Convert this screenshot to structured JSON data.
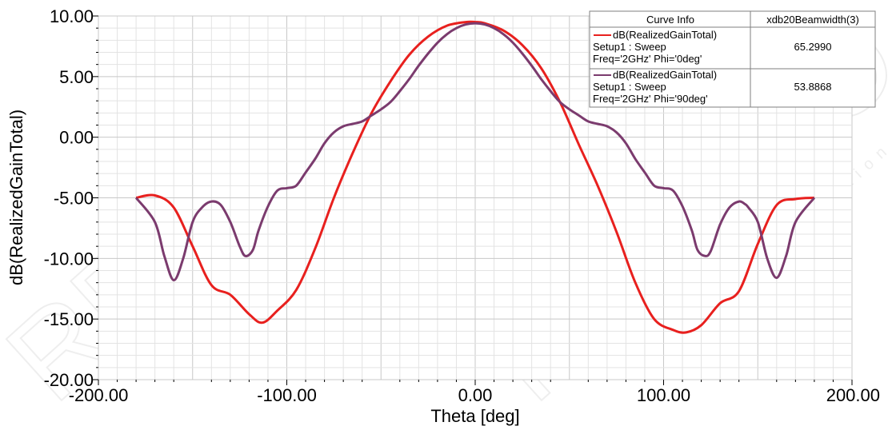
{
  "chart_data": {
    "type": "line",
    "xlabel": "Theta [deg]",
    "ylabel": "dB(RealizedGainTotal)",
    "xlim": [
      -200,
      200
    ],
    "ylim": [
      -20,
      10
    ],
    "x_ticks": [
      "-200.00",
      "-100.00",
      "0.00",
      "100.00",
      "200.00"
    ],
    "y_ticks": [
      "10.00",
      "5.00",
      "0.00",
      "-5.00",
      "-10.00",
      "-15.00",
      "-20.00"
    ],
    "grid": true,
    "legend": {
      "placement": "top-right",
      "header_left": "Curve Info",
      "header_right": "xdb20Beamwidth(3)",
      "rows": [
        {
          "line1": "dB(RealizedGainTotal)",
          "line2": "Setup1 : Sweep",
          "line3": "Freq='2GHz' Phi='0deg'",
          "value": "65.2990"
        },
        {
          "line1": "dB(RealizedGainTotal)",
          "line2": "Setup1 : Sweep",
          "line3": "Freq='2GHz' Phi='90deg'",
          "value": "53.8868"
        }
      ]
    },
    "series": [
      {
        "name": "dB(RealizedGainTotal) Setup1 : Sweep Freq='2GHz' Phi='0deg'",
        "color": "#e8201e",
        "x": [
          -180,
          -170,
          -160,
          -150,
          -140,
          -130,
          -120,
          -113,
          -105,
          -95,
          -85,
          -75,
          -65,
          -55,
          -45,
          -35,
          -25,
          -15,
          -5,
          0,
          5,
          15,
          25,
          35,
          45,
          55,
          65,
          75,
          85,
          95,
          105,
          112,
          120,
          130,
          140,
          150,
          160,
          170,
          180
        ],
        "y": [
          -5.0,
          -4.8,
          -5.8,
          -9.0,
          -12.2,
          -13.0,
          -14.6,
          -15.3,
          -14.3,
          -12.6,
          -9.2,
          -5.0,
          -1.3,
          2.0,
          4.6,
          6.8,
          8.3,
          9.2,
          9.5,
          9.5,
          9.4,
          8.8,
          7.6,
          5.7,
          2.9,
          -0.6,
          -4.0,
          -7.8,
          -12.0,
          -15.0,
          -15.9,
          -16.1,
          -15.5,
          -13.7,
          -12.7,
          -8.8,
          -5.6,
          -5.1,
          -5.0
        ]
      },
      {
        "name": "dB(RealizedGainTotal) Setup1 : Sweep Freq='2GHz' Phi='90deg'",
        "color": "#7b3b6e",
        "x": [
          -180,
          -170,
          -165,
          -160,
          -155,
          -150,
          -145,
          -140,
          -135,
          -130,
          -125,
          -122,
          -118,
          -115,
          -110,
          -105,
          -100,
          -95,
          -90,
          -85,
          -80,
          -75,
          -70,
          -65,
          -60,
          -55,
          -50,
          -45,
          -40,
          -35,
          -30,
          -25,
          -20,
          -15,
          -10,
          -5,
          0,
          5,
          10,
          15,
          20,
          25,
          30,
          35,
          40,
          45,
          50,
          55,
          60,
          65,
          70,
          75,
          80,
          85,
          90,
          95,
          100,
          105,
          110,
          115,
          118,
          122,
          125,
          130,
          135,
          140,
          143,
          145,
          150,
          155,
          160,
          165,
          170,
          180
        ],
        "y": [
          -5.0,
          -7.0,
          -9.8,
          -11.8,
          -10.0,
          -7.0,
          -5.8,
          -5.3,
          -5.6,
          -7.0,
          -9.0,
          -9.8,
          -9.3,
          -7.7,
          -5.7,
          -4.4,
          -4.2,
          -4.0,
          -2.9,
          -1.8,
          -0.5,
          0.4,
          0.9,
          1.1,
          1.3,
          1.8,
          2.3,
          2.9,
          3.8,
          4.8,
          5.9,
          6.9,
          7.8,
          8.5,
          9.0,
          9.3,
          9.4,
          9.3,
          9.0,
          8.5,
          7.8,
          6.9,
          5.9,
          4.8,
          3.8,
          2.9,
          2.3,
          1.8,
          1.3,
          1.1,
          0.9,
          0.4,
          -0.5,
          -1.8,
          -2.9,
          -4.0,
          -4.2,
          -4.4,
          -5.7,
          -7.7,
          -9.3,
          -9.8,
          -9.4,
          -7.2,
          -5.8,
          -5.3,
          -5.5,
          -5.8,
          -7.0,
          -10.0,
          -11.6,
          -9.8,
          -7.0,
          -5.0
        ]
      }
    ]
  },
  "watermark": "RF MISO",
  "watermark_sub": "RF Microwave Solution"
}
